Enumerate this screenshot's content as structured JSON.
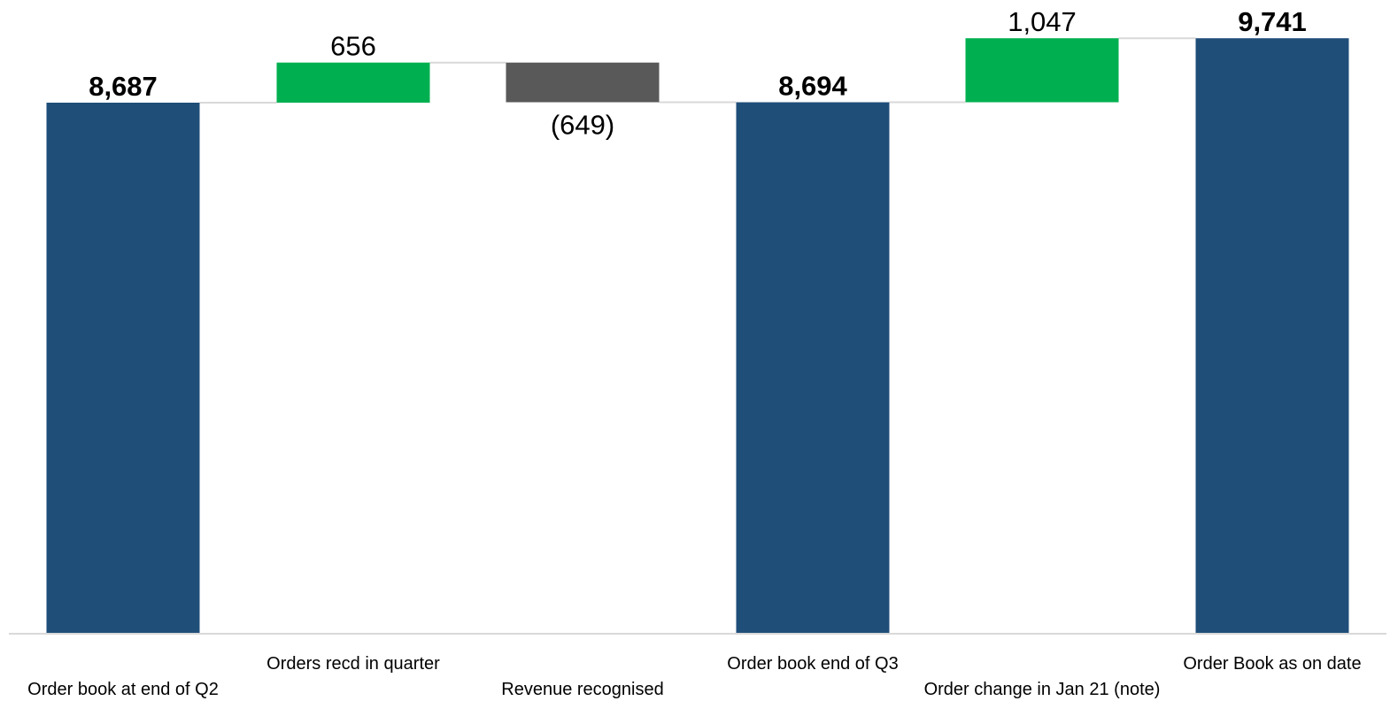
{
  "chart_data": {
    "type": "waterfall",
    "title": "",
    "xlabel": "",
    "ylabel": "",
    "ylim": [
      0,
      10000
    ],
    "grid": false,
    "legend": "none",
    "items": [
      {
        "category": "Order book at end of Q2",
        "value": 8687,
        "kind": "total",
        "label": "8,687",
        "color": "#1F4E79"
      },
      {
        "category": "Orders recd in quarter",
        "value": 656,
        "kind": "increase",
        "label": "656",
        "color": "#00B050"
      },
      {
        "category": "Revenue recognised",
        "value": -649,
        "kind": "decrease",
        "label": "(649)",
        "color": "#595959"
      },
      {
        "category": "Order book end of Q3",
        "value": 8694,
        "kind": "total",
        "label": "8,694",
        "color": "#1F4E79"
      },
      {
        "category": "Order change in Jan 21 (note)",
        "value": 1047,
        "kind": "increase",
        "label": "1,047",
        "color": "#00B050"
      },
      {
        "category": "Order Book as on date",
        "value": 9741,
        "kind": "total",
        "label": "9,741",
        "color": "#1F4E79"
      }
    ]
  }
}
